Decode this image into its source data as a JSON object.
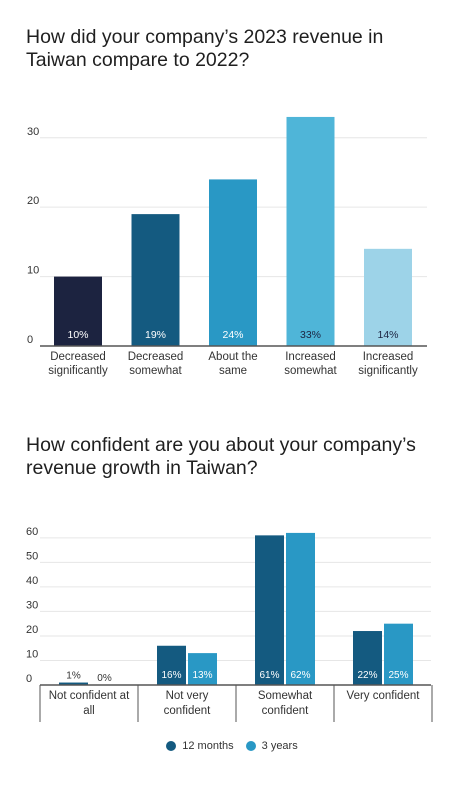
{
  "chart_data": [
    {
      "type": "bar",
      "title": "How did your company’s 2023 revenue in Taiwan compare to 2022?",
      "categories": [
        [
          "Decreased",
          "significantly"
        ],
        [
          "Decreased",
          "somewhat"
        ],
        [
          "About the",
          "same"
        ],
        [
          "Increased",
          "somewhat"
        ],
        [
          "Increased",
          "significantly"
        ]
      ],
      "values": [
        10,
        19,
        24,
        33,
        14
      ],
      "data_labels": [
        "10%",
        "19%",
        "24%",
        "33%",
        "14%"
      ],
      "colors": [
        "#1c2340",
        "#145a80",
        "#2998c5",
        "#4fb5d8",
        "#9dd3e8"
      ],
      "label_colors": [
        "#ffffff",
        "#ffffff",
        "#ffffff",
        "#1c2340",
        "#1c2340"
      ],
      "y_ticks": [
        0,
        10,
        20,
        30
      ],
      "ylim": [
        0,
        34
      ],
      "grid": true
    },
    {
      "type": "bar",
      "title": "How confident are you about your company’s revenue growth in Taiwan?",
      "categories": [
        [
          "Not confident at",
          "all"
        ],
        [
          "Not very",
          "confident"
        ],
        [
          "Somewhat",
          "confident"
        ],
        [
          "Very confident"
        ]
      ],
      "series": [
        {
          "name": "12 months",
          "color": "#145a80",
          "values": [
            1,
            16,
            61,
            22
          ],
          "data_labels": [
            "1%",
            "16%",
            "61%",
            "22%"
          ]
        },
        {
          "name": "3 years",
          "color": "#2998c5",
          "values": [
            0,
            13,
            62,
            25
          ],
          "data_labels": [
            "0%",
            "13%",
            "62%",
            "25%"
          ]
        }
      ],
      "y_ticks": [
        0,
        10,
        20,
        30,
        40,
        50,
        60
      ],
      "ylim": [
        0,
        64
      ],
      "grid": true,
      "legend_position": "bottom-center"
    }
  ]
}
